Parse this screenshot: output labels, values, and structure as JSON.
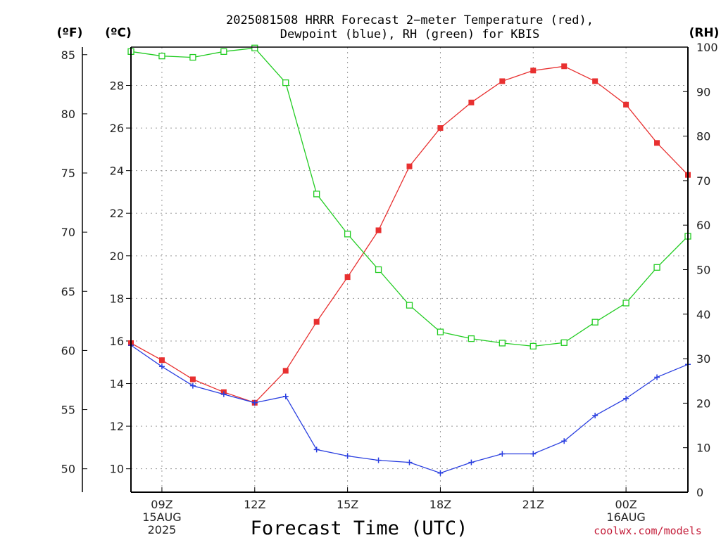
{
  "title_line1": "2025081508 HRRR Forecast 2−meter Temperature (red),",
  "title_line2": "Dewpoint (blue), RH (green) for KBIS",
  "unit_f": "(ºF)",
  "unit_c": "(ºC)",
  "unit_rh": "(RH)",
  "xlabel": "Forecast Time (UTC)",
  "credit": "coolwx.com/models",
  "colors": {
    "temperature": "#e83030",
    "dewpoint": "#2a3fe0",
    "rh": "#22cc22"
  },
  "chart_data": {
    "type": "line",
    "x_hours": [
      8,
      9,
      10,
      11,
      12,
      13,
      14,
      15,
      16,
      17,
      18,
      19,
      20,
      21,
      22,
      23,
      24,
      25,
      26
    ],
    "x_range": [
      8,
      26
    ],
    "x_ticks": [
      {
        "hour": 9,
        "lines": [
          "09Z",
          "15AUG",
          "2025"
        ]
      },
      {
        "hour": 12,
        "lines": [
          "12Z"
        ]
      },
      {
        "hour": 15,
        "lines": [
          "15Z"
        ]
      },
      {
        "hour": 18,
        "lines": [
          "18Z"
        ]
      },
      {
        "hour": 21,
        "lines": [
          "21Z"
        ]
      },
      {
        "hour": 24,
        "lines": [
          "00Z",
          "16AUG"
        ]
      }
    ],
    "y_left_c": {
      "range": [
        8.9,
        29.8
      ],
      "ticks": [
        10,
        12,
        14,
        16,
        18,
        20,
        22,
        24,
        26,
        28
      ]
    },
    "y_left_f": {
      "ticks": [
        50,
        55,
        60,
        65,
        70,
        75,
        80,
        85
      ]
    },
    "y_right_rh": {
      "range": [
        0,
        100
      ],
      "ticks": [
        0,
        10,
        20,
        30,
        40,
        50,
        60,
        70,
        80,
        90,
        100
      ]
    },
    "series": [
      {
        "key": "temperature",
        "axis": "c",
        "marker": "filled-square",
        "values": [
          15.9,
          15.1,
          14.2,
          13.6,
          13.1,
          14.6,
          16.9,
          19.0,
          21.2,
          24.2,
          26.0,
          27.2,
          28.2,
          28.7,
          28.9,
          28.2,
          27.1,
          25.3,
          23.8
        ]
      },
      {
        "key": "dewpoint",
        "axis": "c",
        "marker": "plus",
        "values": [
          15.8,
          14.8,
          13.9,
          13.5,
          13.1,
          13.4,
          10.9,
          10.6,
          10.4,
          10.3,
          9.8,
          10.3,
          10.7,
          10.7,
          11.3,
          12.5,
          13.3,
          14.3,
          14.9
        ]
      },
      {
        "key": "rh",
        "axis": "rh",
        "marker": "open-square",
        "values": [
          99,
          98,
          97.7,
          99,
          99.8,
          92,
          67,
          58,
          50,
          42,
          36,
          34.5,
          33.5,
          32.8,
          33.6,
          38.2,
          42.5,
          50.5,
          57.5
        ]
      }
    ]
  }
}
